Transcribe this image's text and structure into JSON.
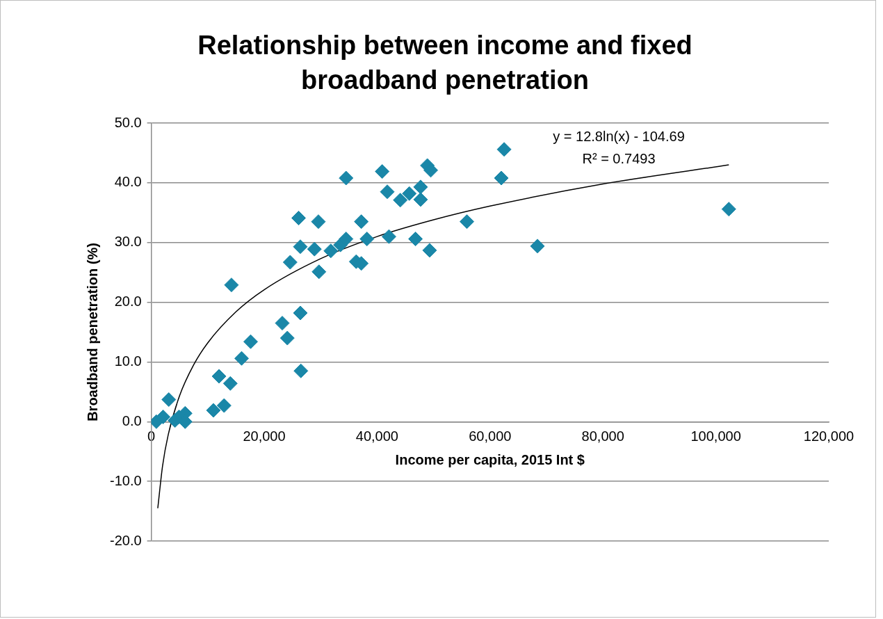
{
  "chart_data": {
    "type": "scatter",
    "title": "Relationship between income and fixed broadband penetration",
    "xlabel": "Income per capita, 2015 Int $",
    "ylabel": "Broadband penetration (%)",
    "xlim": [
      0,
      120000
    ],
    "ylim": [
      -20,
      50
    ],
    "xticks": [
      {
        "value": 0,
        "label": "0"
      },
      {
        "value": 20000,
        "label": "20,000"
      },
      {
        "value": 40000,
        "label": "40,000"
      },
      {
        "value": 60000,
        "label": "60,000"
      },
      {
        "value": 80000,
        "label": "80,000"
      },
      {
        "value": 100000,
        "label": "100,000"
      },
      {
        "value": 120000,
        "label": "120,000"
      }
    ],
    "yticks": [
      {
        "value": -20,
        "label": "-20.0"
      },
      {
        "value": -10,
        "label": "-10.0"
      },
      {
        "value": 0,
        "label": "0.0"
      },
      {
        "value": 10,
        "label": "10.0"
      },
      {
        "value": 20,
        "label": "20.0"
      },
      {
        "value": 30,
        "label": "30.0"
      },
      {
        "value": 40,
        "label": "40.0"
      },
      {
        "value": 50,
        "label": "50.0"
      }
    ],
    "grid": "y",
    "legend": false,
    "marker": "diamond",
    "annotations": [
      "y = 12.8ln(x) - 104.69",
      "R² = 0.7493"
    ],
    "series": [
      {
        "color": "#1a87a8",
        "x": [
          900,
          2100,
          3100,
          4200,
          4900,
          6000,
          6000,
          11000,
          12900,
          12000,
          14000,
          16000,
          17600,
          14200,
          23200,
          24100,
          26400,
          26500,
          24600,
          26100,
          29600,
          34500,
          40900,
          41800,
          44100,
          45700,
          47700,
          47700,
          48900,
          49500,
          26400,
          28900,
          29700,
          31800,
          33500,
          34500,
          37200,
          38200,
          36300,
          37200,
          42100,
          46800,
          49300,
          62500,
          62000,
          55900,
          68400,
          102300
        ],
        "values": [
          0.0,
          0.8,
          3.7,
          0.2,
          0.8,
          1.4,
          0.0,
          1.9,
          2.7,
          7.6,
          6.4,
          10.6,
          13.4,
          22.9,
          16.5,
          14.0,
          18.2,
          8.5,
          26.7,
          34.1,
          33.5,
          40.8,
          41.9,
          38.5,
          37.1,
          38.2,
          39.3,
          37.2,
          42.9,
          42.1,
          29.3,
          28.9,
          25.1,
          28.6,
          29.6,
          30.6,
          33.5,
          30.6,
          26.8,
          26.5,
          31.0,
          30.6,
          28.7,
          45.6,
          40.8,
          33.5,
          29.4,
          35.6
        ]
      },
      {
        "type": "line",
        "color": "#000000",
        "marker": "none",
        "x": [
          1150,
          2000,
          3000,
          5000,
          7500,
          10000,
          15000,
          20000,
          30000,
          40000,
          50000,
          60000,
          80000,
          102300
        ],
        "values": [
          -14.5,
          -7.4,
          -2.2,
          4.3,
          9.5,
          13.2,
          18.4,
          22.1,
          27.3,
          31.0,
          33.8,
          36.1,
          39.8,
          43.0
        ]
      }
    ]
  }
}
